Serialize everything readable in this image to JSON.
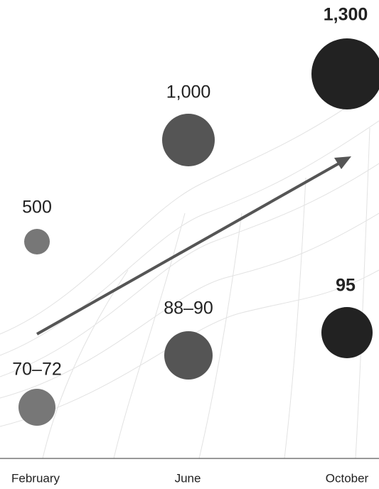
{
  "chart_data": {
    "type": "bubble",
    "categories": [
      "February",
      "June",
      "October"
    ],
    "series": [
      {
        "values": [
          500,
          1000,
          1300
        ],
        "value_labels": [
          "500",
          "1,000",
          "1,300"
        ],
        "colors": [
          "#777777",
          "#555555",
          "#222222"
        ]
      },
      {
        "low": [
          70,
          88,
          95
        ],
        "high": [
          72,
          90,
          95
        ],
        "value_labels": [
          "70–72",
          "88–90",
          "95"
        ],
        "colors": [
          "#777777",
          "#555555",
          "#222222"
        ]
      }
    ]
  }
}
